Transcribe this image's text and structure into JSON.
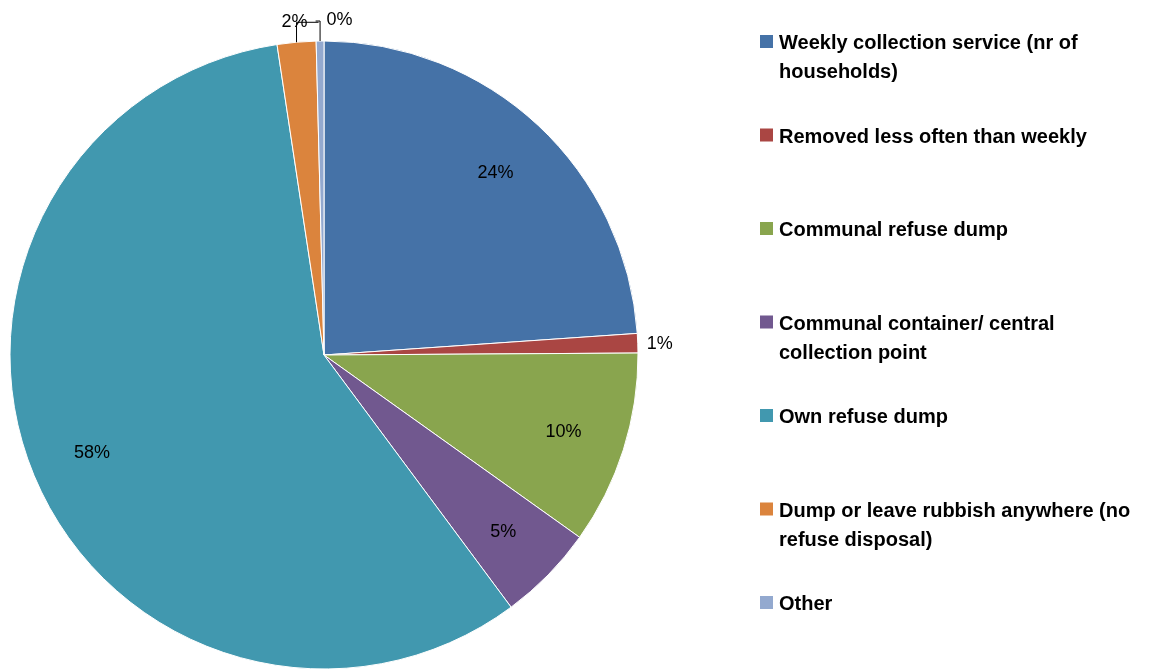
{
  "chart_data": {
    "type": "pie",
    "categories": [
      "Weekly collection service (nr of households)",
      "Removed less often than weekly",
      "Communal refuse dump",
      "Communal container/ central collection point",
      "Own refuse dump",
      "Dump or leave rubbish anywhere (no refuse disposal)",
      "Other"
    ],
    "values": [
      24,
      1,
      10,
      5,
      58,
      2,
      0.4
    ],
    "value_labels": [
      "24%",
      "1%",
      "10%",
      "5%",
      "58%",
      "2%",
      "0%"
    ],
    "colors": [
      "#4572a7",
      "#aa4643",
      "#89a54e",
      "#71588f",
      "#4198af",
      "#db843d",
      "#93a9cf"
    ],
    "legend": "right"
  }
}
